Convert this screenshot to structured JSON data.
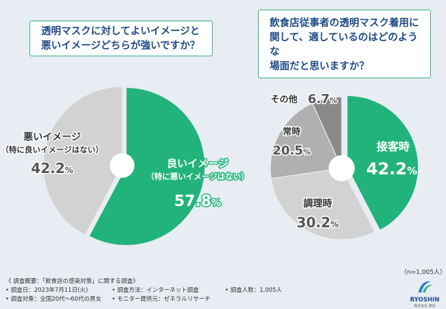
{
  "question_left": {
    "line1": "透明マスクに対してよいイメージと",
    "line2": "悪いイメージどちらが強いですか？"
  },
  "question_right": {
    "line1": "飲食店従事者の透明マスク着用に",
    "line2": "関して、適しているのはどのような",
    "line3": "場面だと思いますか？"
  },
  "chart_data": [
    {
      "type": "pie",
      "variant": "donut",
      "title": "透明マスクに対してよいイメージと悪いイメージどちらが強いですか？",
      "slices": [
        {
          "label": "良いイメージ",
          "sublabel": "（特に悪いイメージはない）",
          "value": 57.8,
          "value_num": "57.8",
          "color": "#22b37c"
        },
        {
          "label": "悪いイメージ",
          "sublabel": "（特に良いイメージはない）",
          "value": 42.2,
          "value_num": "42.2",
          "color": "#d2d2d2"
        }
      ]
    },
    {
      "type": "pie",
      "variant": "donut",
      "title": "飲食店従事者の透明マスク着用に関して、適しているのはどのような場面だと思いますか？",
      "slices": [
        {
          "label": "接客時",
          "value": 42.2,
          "value_num": "42.2",
          "color": "#22b37c"
        },
        {
          "label": "調理時",
          "value": 30.2,
          "value_num": "30.2",
          "color": "#d2d2d2"
        },
        {
          "label": "常時",
          "value": 20.5,
          "value_num": "20.5",
          "color": "#b0b0b0"
        },
        {
          "label": "その他",
          "value": 6.7,
          "value_num": "6.7",
          "color": "#8a8a8a"
        }
      ]
    }
  ],
  "percent_sign": "%",
  "sample_note": "（n=1,005人）",
  "footer": {
    "heading": "《 調査概要：「飲食店の感染対策」に関する調査》",
    "date": "• 調査日：2023年7月11日(火)",
    "method": "• 調査方法：インターネット調査",
    "count": "• 調査人数：1,005人",
    "target": "• 調査対象：全国20代〜60代の男女",
    "provider": "• モニター提供元：ゼネラルリサーチ"
  },
  "logo": {
    "name": "RYOSHIN",
    "sub": "株式会社 陵信"
  }
}
